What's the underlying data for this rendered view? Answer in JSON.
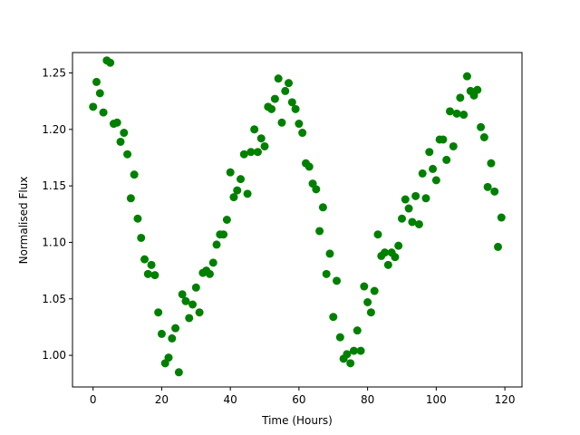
{
  "chart_data": {
    "type": "scatter",
    "title": "",
    "xlabel": "Time (Hours)",
    "ylabel": "Normalised Flux",
    "xlim": [
      -6,
      125
    ],
    "ylim": [
      0.972,
      1.268
    ],
    "xticks": [
      0,
      20,
      40,
      60,
      80,
      100,
      120
    ],
    "yticks": [
      1.0,
      1.05,
      1.1,
      1.15,
      1.2,
      1.25
    ],
    "xtick_labels": [
      "0",
      "20",
      "40",
      "60",
      "80",
      "100",
      "120"
    ],
    "ytick_labels": [
      "1.00",
      "1.05",
      "1.10",
      "1.15",
      "1.20",
      "1.25"
    ],
    "grid": false,
    "legend": "none",
    "marker_color": "#008000",
    "series": [
      {
        "x": [
          0,
          1,
          2,
          3,
          4,
          5,
          6,
          7,
          8,
          9,
          10,
          11,
          12,
          13,
          14,
          15,
          16,
          17,
          18,
          19,
          20,
          21,
          22,
          23,
          24,
          25,
          26,
          27,
          28,
          29,
          30,
          31,
          32,
          33,
          34,
          35,
          36,
          37,
          38,
          39,
          40,
          41,
          42,
          43,
          44,
          45,
          46,
          47,
          48,
          49,
          50,
          51,
          52,
          53,
          54,
          55,
          56,
          57,
          58,
          59,
          60,
          61,
          62,
          63,
          64,
          65,
          66,
          67,
          68,
          69,
          70,
          71,
          72,
          73,
          74,
          75,
          76,
          77,
          78,
          79,
          80,
          81,
          82,
          83,
          84,
          85,
          86,
          87,
          88,
          89,
          90,
          91,
          92,
          93,
          94,
          95,
          96,
          97,
          98,
          99,
          100,
          101,
          102,
          103,
          104,
          105,
          106,
          107,
          108,
          109,
          110,
          111,
          112,
          113,
          114,
          115,
          116,
          117,
          118,
          119
        ],
        "y": [
          1.22,
          1.242,
          1.232,
          1.215,
          1.261,
          1.259,
          1.205,
          1.206,
          1.189,
          1.197,
          1.178,
          1.139,
          1.16,
          1.121,
          1.104,
          1.085,
          1.072,
          1.08,
          1.071,
          1.038,
          1.019,
          0.993,
          0.998,
          1.015,
          1.024,
          0.985,
          1.054,
          1.048,
          1.033,
          1.045,
          1.06,
          1.038,
          1.073,
          1.075,
          1.072,
          1.082,
          1.098,
          1.107,
          1.107,
          1.12,
          1.162,
          1.14,
          1.146,
          1.156,
          1.178,
          1.143,
          1.18,
          1.2,
          1.18,
          1.192,
          1.185,
          1.22,
          1.218,
          1.227,
          1.245,
          1.206,
          1.234,
          1.241,
          1.224,
          1.218,
          1.205,
          1.197,
          1.17,
          1.167,
          1.152,
          1.147,
          1.11,
          1.131,
          1.072,
          1.09,
          1.034,
          1.066,
          1.016,
          0.997,
          1.001,
          0.993,
          1.004,
          1.022,
          1.004,
          1.061,
          1.047,
          1.038,
          1.057,
          1.107,
          1.088,
          1.091,
          1.08,
          1.091,
          1.087,
          1.097,
          1.121,
          1.138,
          1.13,
          1.118,
          1.141,
          1.116,
          1.161,
          1.139,
          1.18,
          1.165,
          1.155,
          1.191,
          1.191,
          1.173,
          1.216,
          1.185,
          1.214,
          1.228,
          1.213,
          1.247,
          1.234,
          1.23,
          1.235,
          1.202,
          1.193,
          1.149,
          1.17,
          1.145,
          1.096,
          1.122
        ]
      }
    ]
  }
}
